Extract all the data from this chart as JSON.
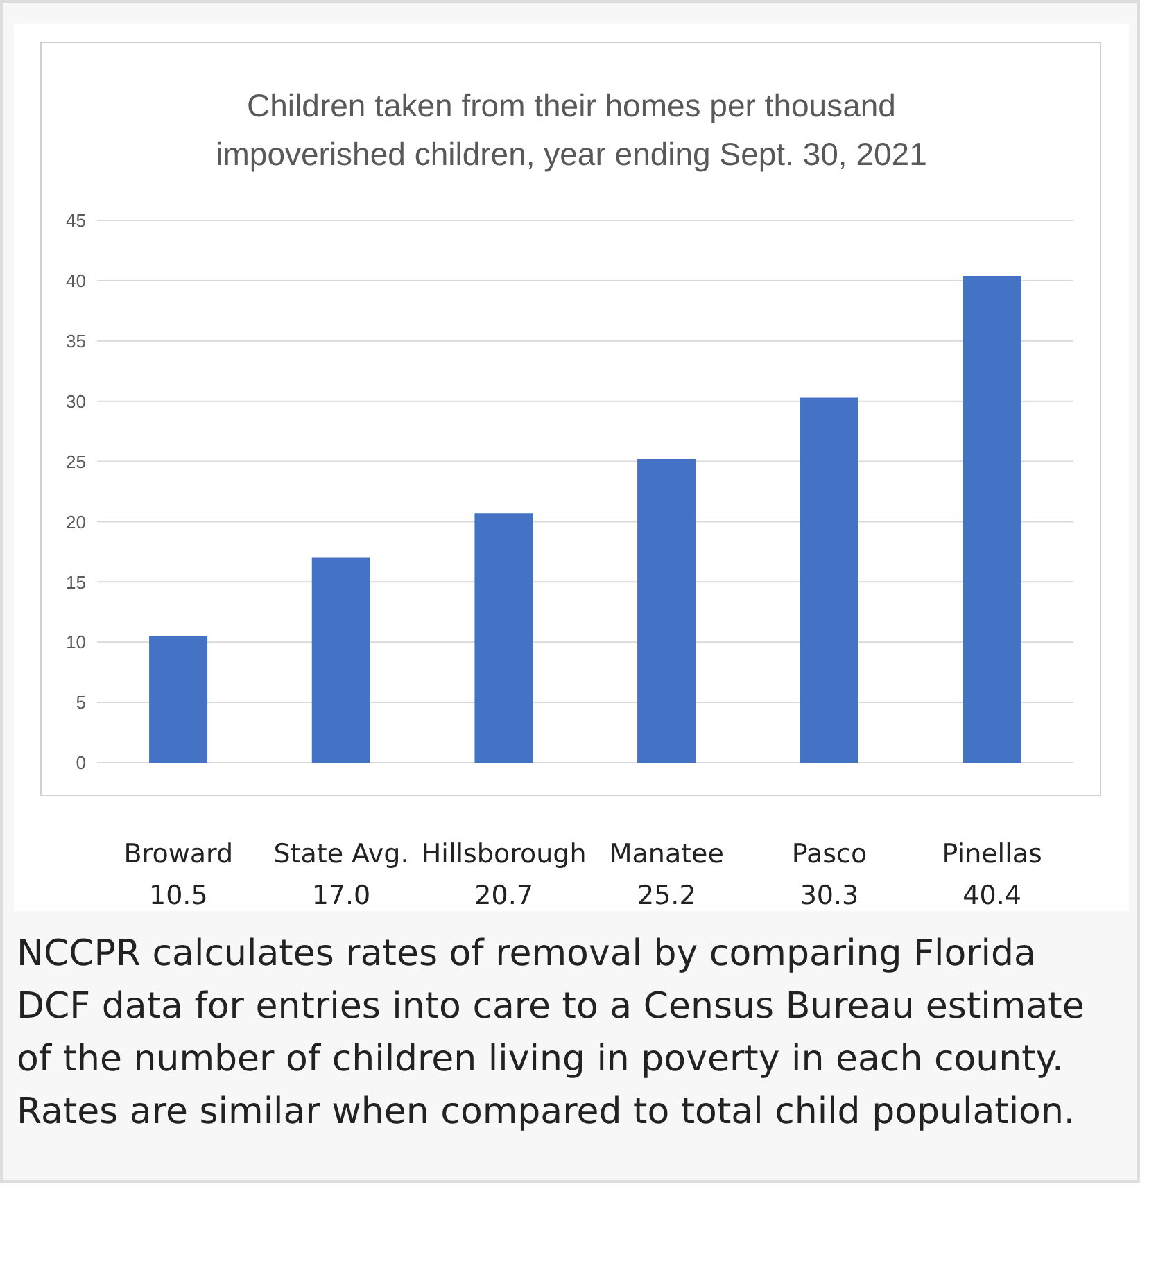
{
  "chart_data": {
    "type": "bar",
    "title": "Children taken from their homes per thousand impoverished children, year ending Sept. 30, 2021",
    "categories": [
      "Broward",
      "State Avg.",
      "Hillsborough",
      "Manatee",
      "Pasco",
      "Pinellas"
    ],
    "values": [
      10.5,
      17.0,
      20.7,
      25.2,
      30.3,
      40.4
    ],
    "value_labels": [
      "10.5",
      "17.0",
      "20.7",
      "25.2",
      "30.3",
      "40.4"
    ],
    "color": "#4472c4",
    "ylim": [
      0,
      45
    ],
    "yticks": [
      0,
      5,
      10,
      15,
      20,
      25,
      30,
      35,
      40,
      45
    ],
    "grid": "y",
    "legend": false,
    "annotations": [
      "NCCPR calculates rates of removal by comparing Florida DCF data for entries into care to a Census Bureau estimate of the number of children living in poverty in each county.  Rates are similar when compared to total child population."
    ]
  }
}
